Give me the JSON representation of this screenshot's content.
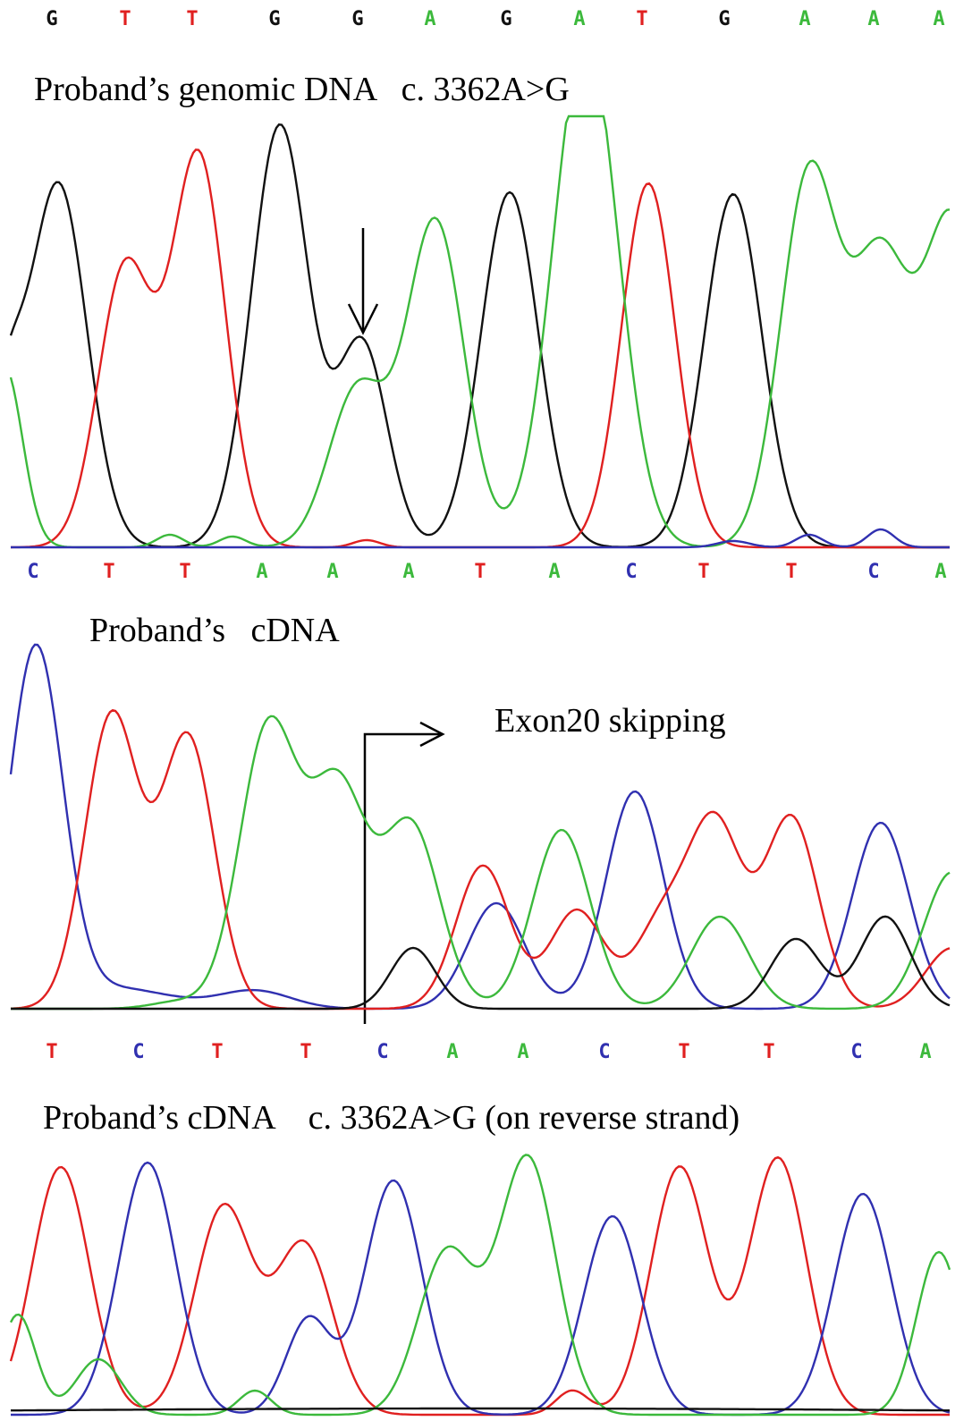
{
  "panels": [
    {
      "sequence": [
        "G",
        "T",
        "T",
        "G",
        "G",
        "A",
        "G",
        "A",
        "T",
        "G",
        "A",
        "A",
        "A"
      ],
      "title": "Proband’s genomic DNA   c. 3362A>G"
    },
    {
      "sequence": [
        "C",
        "T",
        "T",
        "A",
        "A",
        "A",
        "T",
        "A",
        "C",
        "T",
        "T",
        "C",
        "A"
      ],
      "title": "Proband’s   cDNA",
      "annotation": "Exon20 skipping"
    },
    {
      "sequence": [
        "T",
        "C",
        "T",
        "T",
        "C",
        "A",
        "A",
        "C",
        "T",
        "T",
        "C",
        "A"
      ],
      "title": "Proband’s cDNA    c. 3362A>G (on reverse strand)"
    }
  ]
}
